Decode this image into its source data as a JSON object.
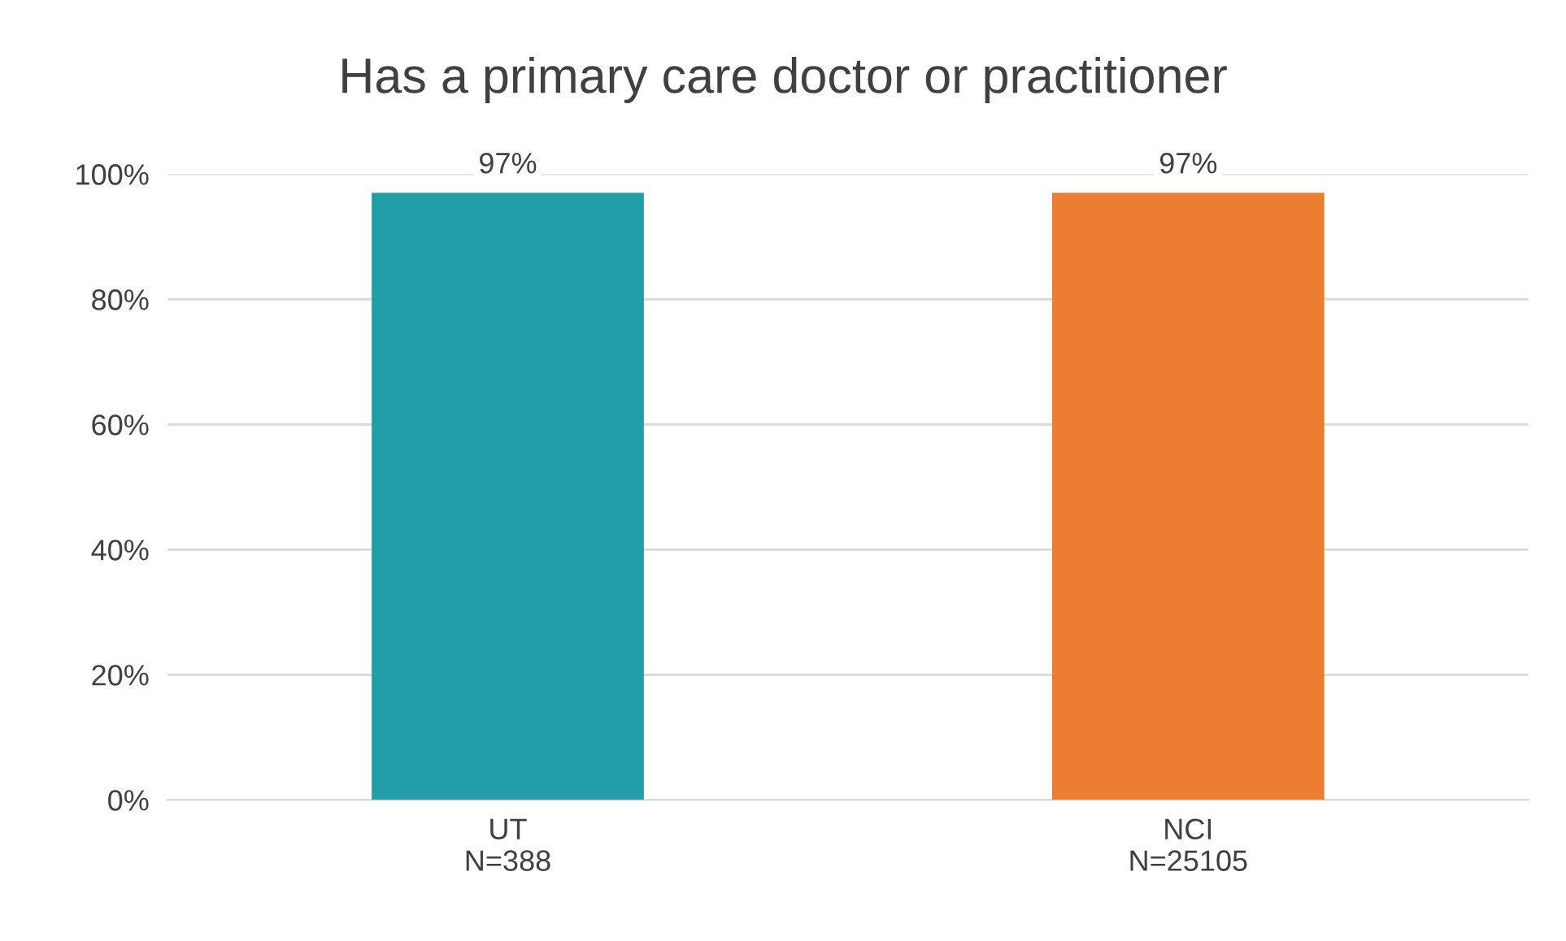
{
  "chart_data": {
    "type": "bar",
    "title": "Has a primary care doctor or practitioner",
    "categories": [
      "UT\nN=388",
      "NCI\nN=25105"
    ],
    "values": [
      97,
      97
    ],
    "colors": [
      "#219ea8",
      "#ed7d31"
    ],
    "value_labels": [
      "97%",
      "97%"
    ],
    "ylim": [
      0,
      100
    ],
    "yticks": [
      {
        "value": 0,
        "label": "0%"
      },
      {
        "value": 20,
        "label": "20%"
      },
      {
        "value": 40,
        "label": "40%"
      },
      {
        "value": 60,
        "label": "60%"
      },
      {
        "value": 80,
        "label": "80%"
      },
      {
        "value": 100,
        "label": "100%"
      }
    ],
    "grid": "y"
  }
}
